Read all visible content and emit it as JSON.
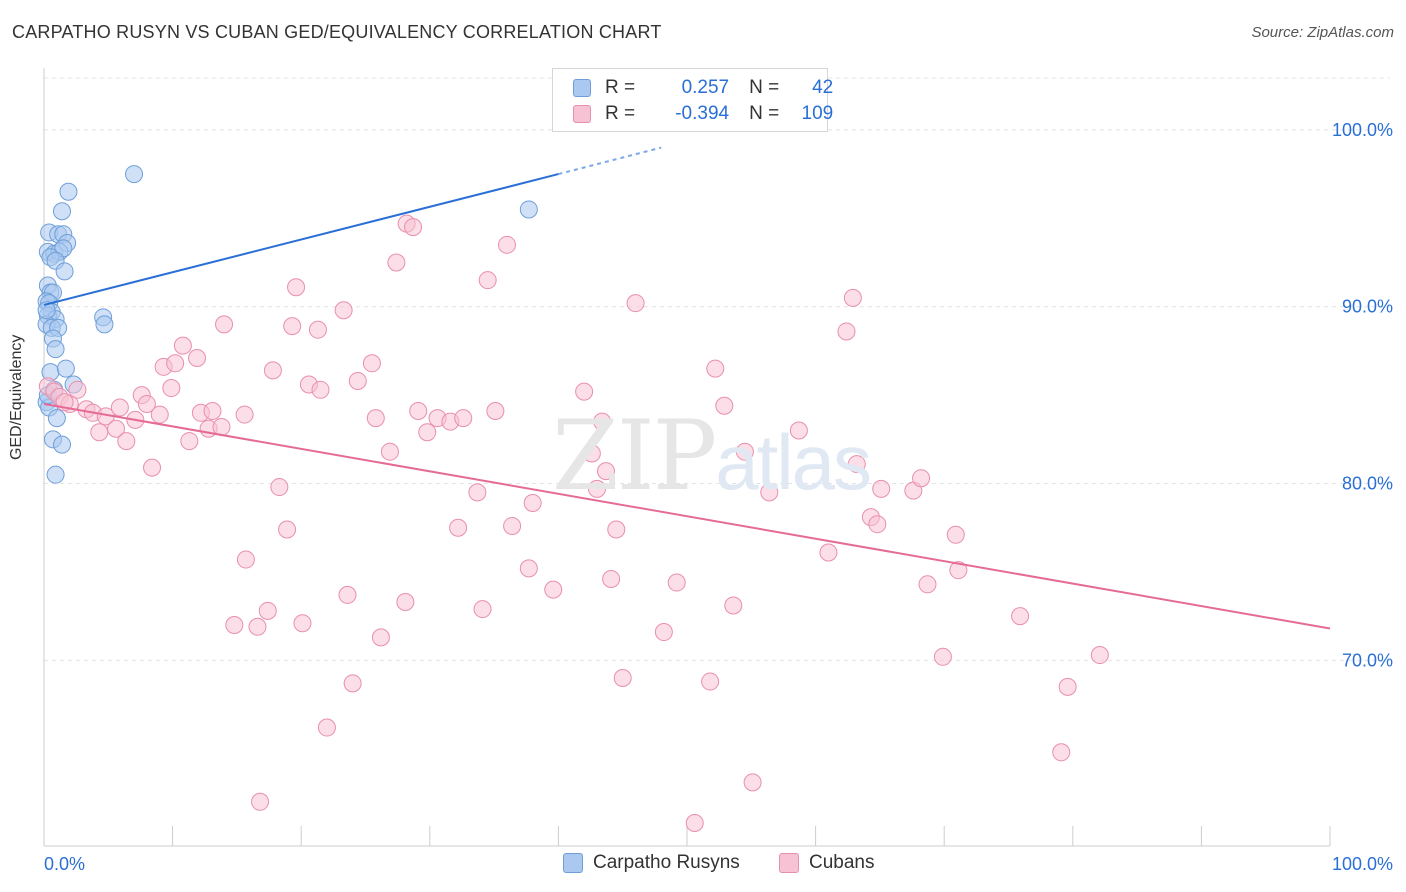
{
  "title": "CARPATHO RUSYN VS CUBAN GED/EQUIVALENCY CORRELATION CHART",
  "source": "Source: ZipAtlas.com",
  "watermark": {
    "zip": "ZIP",
    "atlas": "atlas"
  },
  "legend": {
    "rows": [
      {
        "r_label": "R =",
        "r_value": "0.257",
        "n_label": "N =",
        "n_value": "42",
        "color": "#aac8f0",
        "border": "#6f9fd8"
      },
      {
        "r_label": "R =",
        "r_value": "-0.394",
        "n_label": "N =",
        "n_value": "109",
        "color": "#f7c2d3",
        "border": "#e98fae"
      }
    ]
  },
  "bottom_legend": [
    {
      "label": "Carpatho Rusyns",
      "color": "#aac8f0",
      "border": "#6f9fd8"
    },
    {
      "label": "Cubans",
      "color": "#f7c2d3",
      "border": "#e98fae"
    }
  ],
  "chart_data": {
    "type": "scatter",
    "title": "CARPATHO RUSYN VS CUBAN GED/EQUIVALENCY CORRELATION CHART",
    "xlabel": "",
    "ylabel": "GED/Equivalency",
    "xlim": [
      0,
      100
    ],
    "ylim": [
      59.5,
      103.5
    ],
    "x_tick_labels": [
      "0.0%",
      "100.0%"
    ],
    "y_ticks": [
      70,
      80,
      90,
      100
    ],
    "y_tick_labels": [
      "70.0%",
      "80.0%",
      "90.0%",
      "100.0%"
    ],
    "grid": true,
    "series": [
      {
        "name": "Carpatho Rusyns",
        "color": "#aac8f0",
        "stroke": "#6f9fd8",
        "line_color": "#2a6fd6",
        "trend": {
          "x": [
            0,
            40
          ],
          "y": [
            90.1,
            97.5
          ]
        },
        "trend_dashed": {
          "x": [
            40,
            48
          ],
          "y": [
            97.5,
            99.0
          ]
        },
        "points": [
          [
            7.0,
            97.5
          ],
          [
            1.9,
            96.5
          ],
          [
            1.4,
            95.4
          ],
          [
            37.7,
            95.5
          ],
          [
            0.4,
            94.2
          ],
          [
            1.1,
            94.1
          ],
          [
            1.5,
            94.1
          ],
          [
            1.8,
            93.6
          ],
          [
            0.3,
            93.1
          ],
          [
            0.8,
            93.0
          ],
          [
            1.2,
            93.1
          ],
          [
            1.5,
            93.3
          ],
          [
            0.5,
            92.8
          ],
          [
            0.9,
            92.6
          ],
          [
            1.6,
            92.0
          ],
          [
            0.3,
            91.2
          ],
          [
            0.5,
            90.8
          ],
          [
            0.7,
            90.8
          ],
          [
            0.2,
            90.3
          ],
          [
            0.4,
            90.2
          ],
          [
            0.6,
            89.7
          ],
          [
            0.3,
            89.5
          ],
          [
            0.9,
            89.3
          ],
          [
            0.2,
            89.0
          ],
          [
            0.6,
            88.8
          ],
          [
            1.1,
            88.8
          ],
          [
            4.6,
            89.4
          ],
          [
            4.7,
            89.0
          ],
          [
            0.7,
            88.2
          ],
          [
            0.9,
            87.6
          ],
          [
            0.5,
            86.3
          ],
          [
            1.7,
            86.5
          ],
          [
            2.3,
            85.6
          ],
          [
            0.2,
            84.6
          ],
          [
            0.4,
            84.3
          ],
          [
            1.0,
            83.7
          ],
          [
            0.7,
            82.5
          ],
          [
            1.4,
            82.2
          ],
          [
            0.9,
            80.5
          ],
          [
            0.3,
            85.0
          ],
          [
            0.8,
            85.3
          ],
          [
            0.2,
            89.8
          ]
        ]
      },
      {
        "name": "Cubans",
        "color": "#f7c2d3",
        "stroke": "#e98fae",
        "line_color": "#e56b96",
        "trend": {
          "x": [
            0,
            100
          ],
          "y": [
            84.5,
            71.8
          ]
        },
        "points": [
          [
            0.3,
            85.5
          ],
          [
            0.8,
            85.2
          ],
          [
            1.2,
            84.9
          ],
          [
            2.0,
            84.5
          ],
          [
            2.6,
            85.3
          ],
          [
            3.3,
            84.2
          ],
          [
            3.8,
            84.0
          ],
          [
            4.3,
            82.9
          ],
          [
            4.8,
            83.8
          ],
          [
            5.6,
            83.1
          ],
          [
            5.9,
            84.3
          ],
          [
            6.4,
            82.4
          ],
          [
            7.1,
            83.6
          ],
          [
            7.6,
            85.0
          ],
          [
            8.0,
            84.5
          ],
          [
            8.4,
            80.9
          ],
          [
            9.0,
            83.9
          ],
          [
            9.3,
            86.6
          ],
          [
            9.9,
            85.4
          ],
          [
            10.2,
            86.8
          ],
          [
            10.8,
            87.8
          ],
          [
            11.3,
            82.4
          ],
          [
            11.9,
            87.1
          ],
          [
            12.2,
            84.0
          ],
          [
            12.8,
            83.1
          ],
          [
            13.1,
            84.1
          ],
          [
            13.8,
            83.2
          ],
          [
            14.0,
            89.0
          ],
          [
            15.6,
            83.9
          ],
          [
            15.7,
            75.7
          ],
          [
            14.8,
            72.0
          ],
          [
            16.6,
            71.9
          ],
          [
            16.8,
            62.0
          ],
          [
            17.4,
            72.8
          ],
          [
            17.8,
            86.4
          ],
          [
            18.3,
            79.8
          ],
          [
            18.9,
            77.4
          ],
          [
            19.3,
            88.9
          ],
          [
            19.6,
            91.1
          ],
          [
            20.1,
            72.1
          ],
          [
            20.6,
            85.6
          ],
          [
            21.3,
            88.7
          ],
          [
            21.5,
            85.3
          ],
          [
            22.0,
            66.2
          ],
          [
            23.3,
            89.8
          ],
          [
            23.6,
            73.7
          ],
          [
            24.0,
            68.7
          ],
          [
            24.4,
            85.8
          ],
          [
            25.5,
            86.8
          ],
          [
            25.8,
            83.7
          ],
          [
            26.2,
            71.3
          ],
          [
            26.9,
            81.8
          ],
          [
            27.4,
            92.5
          ],
          [
            28.1,
            73.3
          ],
          [
            28.2,
            94.7
          ],
          [
            28.7,
            94.5
          ],
          [
            29.1,
            84.1
          ],
          [
            29.8,
            82.9
          ],
          [
            30.6,
            83.7
          ],
          [
            31.6,
            83.5
          ],
          [
            32.2,
            77.5
          ],
          [
            32.6,
            83.7
          ],
          [
            33.7,
            79.5
          ],
          [
            34.1,
            72.9
          ],
          [
            34.5,
            91.5
          ],
          [
            35.1,
            84.1
          ],
          [
            36.0,
            93.5
          ],
          [
            36.4,
            77.6
          ],
          [
            37.7,
            75.2
          ],
          [
            38.0,
            78.9
          ],
          [
            39.6,
            74.0
          ],
          [
            42.0,
            85.2
          ],
          [
            42.6,
            81.7
          ],
          [
            43.0,
            79.7
          ],
          [
            43.4,
            83.5
          ],
          [
            43.7,
            80.7
          ],
          [
            44.1,
            74.6
          ],
          [
            44.5,
            77.4
          ],
          [
            45.0,
            69.0
          ],
          [
            46.0,
            90.2
          ],
          [
            48.2,
            71.6
          ],
          [
            49.2,
            74.4
          ],
          [
            50.6,
            60.8
          ],
          [
            51.8,
            68.8
          ],
          [
            52.2,
            86.5
          ],
          [
            52.9,
            84.4
          ],
          [
            53.6,
            73.1
          ],
          [
            54.5,
            81.8
          ],
          [
            55.1,
            63.1
          ],
          [
            56.4,
            79.5
          ],
          [
            58.7,
            83.0
          ],
          [
            61.0,
            76.1
          ],
          [
            62.4,
            88.6
          ],
          [
            62.9,
            90.5
          ],
          [
            63.2,
            81.1
          ],
          [
            64.3,
            78.1
          ],
          [
            64.8,
            77.7
          ],
          [
            65.1,
            79.7
          ],
          [
            67.6,
            79.6
          ],
          [
            68.2,
            80.3
          ],
          [
            68.7,
            74.3
          ],
          [
            69.9,
            70.2
          ],
          [
            70.9,
            77.1
          ],
          [
            71.1,
            75.1
          ],
          [
            75.9,
            72.5
          ],
          [
            79.1,
            64.8
          ],
          [
            79.6,
            68.5
          ],
          [
            82.1,
            70.3
          ],
          [
            1.6,
            84.6
          ]
        ]
      }
    ]
  }
}
